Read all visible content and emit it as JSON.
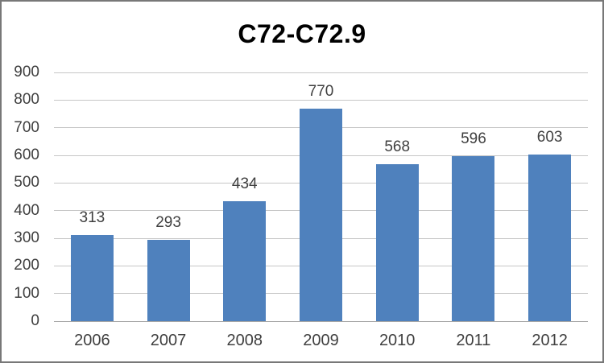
{
  "window": {
    "background": "#FFFFFF",
    "border_color": "#787878"
  },
  "chart_data": {
    "type": "bar",
    "title": "C72-C72.9",
    "categories": [
      "2006",
      "2007",
      "2008",
      "2009",
      "2010",
      "2011",
      "2012"
    ],
    "values": [
      313,
      293,
      434,
      770,
      568,
      596,
      603
    ],
    "data_labels": [
      "313",
      "293",
      "434",
      "770",
      "568",
      "596",
      "603"
    ],
    "xlabel": "",
    "ylabel": "",
    "ylim": [
      0,
      900
    ],
    "ytick_step": 100,
    "yticks": [
      0,
      100,
      200,
      300,
      400,
      500,
      600,
      700,
      800,
      900
    ],
    "grid": "horizontal",
    "legend": "none",
    "bar_color": "#4F81BD",
    "gridline_color": "#C6C6C6",
    "axis_line_color": "#A6A6A6",
    "label_color": "#3F3F3F",
    "title_color": "#000000"
  }
}
